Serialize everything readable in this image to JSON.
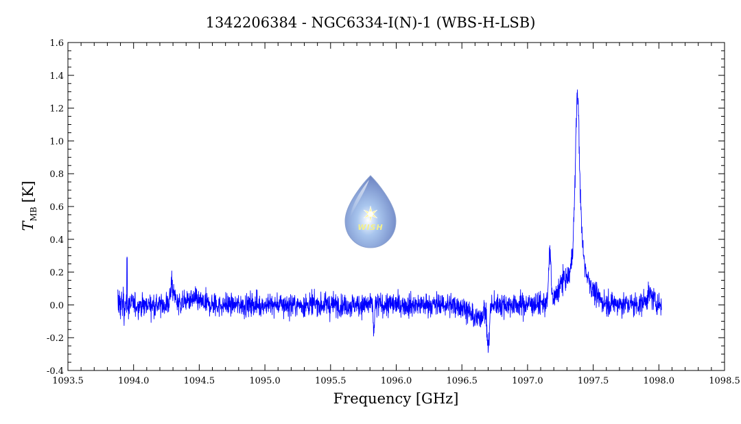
{
  "chart_data": {
    "type": "line",
    "title": "1342206384 - NGC6334-I(N)-1 (WBS-H-LSB)",
    "xlabel": "Frequency [GHz]",
    "ylabel_main": "T",
    "ylabel_sub": "MB",
    "ylabel_unit": "[K]",
    "xlim": [
      1093.5,
      1098.5
    ],
    "ylim": [
      -0.4,
      1.6
    ],
    "xticks": [
      "1093.5",
      "1094.0",
      "1094.5",
      "1095.0",
      "1095.5",
      "1096.0",
      "1096.5",
      "1097.0",
      "1097.5",
      "1098.0",
      "1098.5"
    ],
    "yticks": [
      "-0.4",
      "-0.2",
      "0.0",
      "0.2",
      "0.4",
      "0.6",
      "0.8",
      "1.0",
      "1.2",
      "1.4",
      "1.6"
    ],
    "series": [
      {
        "color": "#0000ff",
        "x_range": [
          1093.88,
          1098.02
        ],
        "noise_rms": 0.035,
        "features": [
          {
            "x": 1093.92,
            "y": 0.1
          },
          {
            "x": 1093.95,
            "y": 0.3
          },
          {
            "x": 1094.29,
            "y": 0.2
          },
          {
            "x": 1094.32,
            "y": 0.12
          },
          {
            "x": 1095.63,
            "y": 0.08
          },
          {
            "x": 1095.83,
            "y": -0.18
          },
          {
            "x": 1096.7,
            "y": -0.3
          },
          {
            "x": 1096.6,
            "y": -0.05
          },
          {
            "x": 1097.17,
            "y": 0.38
          },
          {
            "x": 1097.28,
            "y": 0.15
          },
          {
            "x": 1097.38,
            "y": 1.38
          },
          {
            "x": 1097.92,
            "y": 0.18
          }
        ]
      }
    ]
  },
  "logo": {
    "text": "WISH",
    "icon": "water-drop-star-icon"
  }
}
